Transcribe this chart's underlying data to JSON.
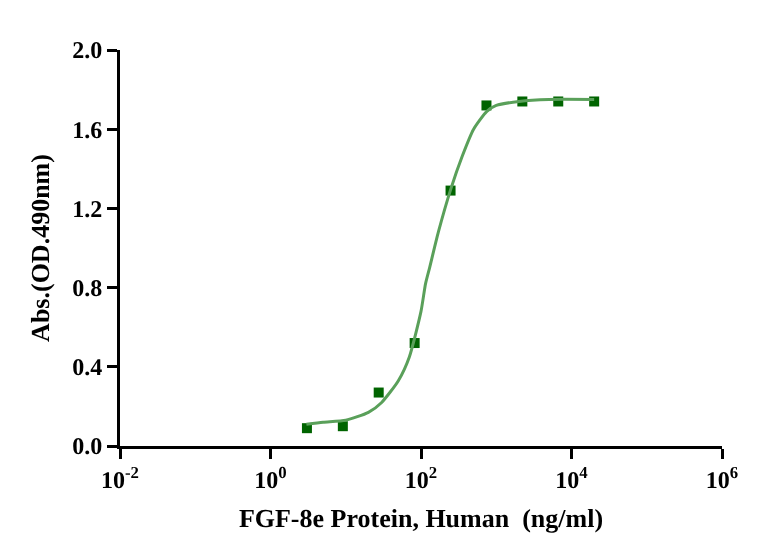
{
  "chart_data": {
    "type": "scatter",
    "xlabel": "FGF-8e Protein, Human  (ng/ml)",
    "ylabel": "Abs.(OD.490nm)",
    "log": "x",
    "grid": false,
    "xlim": [
      0.01,
      1000000
    ],
    "xticks": [
      {
        "value": 0.01,
        "label": "10$^{-2}$"
      },
      {
        "value": 1,
        "label": "10$^{0}$"
      },
      {
        "value": 100,
        "label": "10$^{2}$"
      },
      {
        "value": 10000,
        "label": "10$^{4}$"
      },
      {
        "value": 1000000,
        "label": "10$^{6}$"
      }
    ],
    "ylim": [
      0,
      2
    ],
    "yticks": [
      {
        "value": 0,
        "label": "0.0"
      },
      {
        "value": 0.4,
        "label": "0.4"
      },
      {
        "value": 0.8,
        "label": "0.8"
      },
      {
        "value": 1.2,
        "label": "1.2"
      },
      {
        "value": 1.6,
        "label": "1.6"
      },
      {
        "value": 2,
        "label": "2.0"
      }
    ],
    "series": [
      {
        "marker": "square",
        "color": "#006400",
        "x": [
          3.05,
          9.15,
          27.4,
          82.3,
          247,
          741,
          2222,
          6667,
          20000
        ],
        "values": [
          0.09,
          0.1,
          0.27,
          0.52,
          1.29,
          1.72,
          1.74,
          1.74,
          1.74
        ]
      },
      {
        "type": "line",
        "marker": "none",
        "color": "#5aa05a",
        "x": [
          3,
          5,
          10,
          20,
          30,
          50,
          70,
          100,
          115,
          130,
          170,
          250,
          350,
          500,
          750,
          1000,
          2000,
          5000,
          20000
        ],
        "values": [
          0.11,
          0.12,
          0.13,
          0.17,
          0.22,
          0.33,
          0.45,
          0.68,
          0.82,
          0.9,
          1.08,
          1.3,
          1.46,
          1.6,
          1.69,
          1.72,
          1.74,
          1.75,
          1.75
        ]
      }
    ]
  }
}
